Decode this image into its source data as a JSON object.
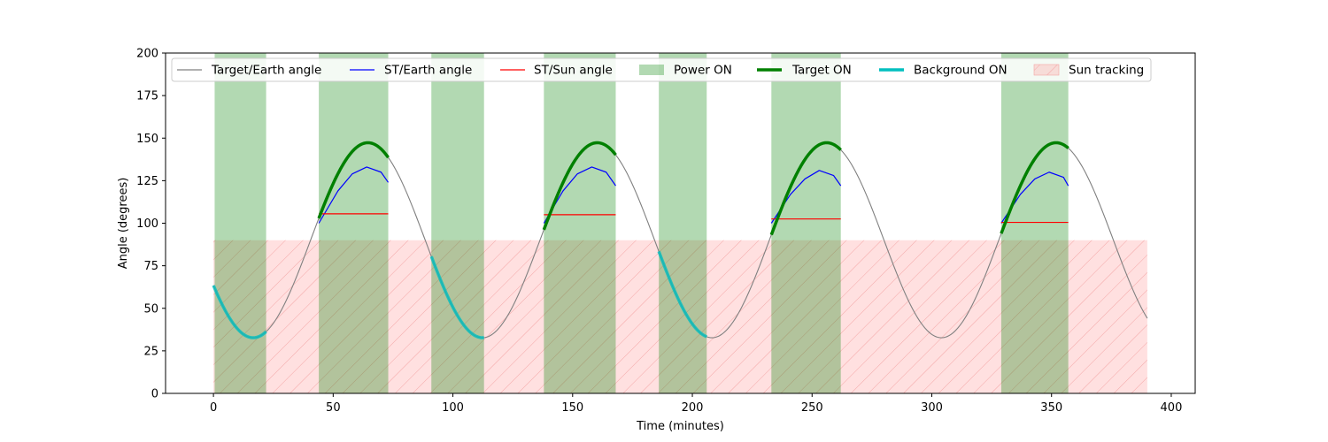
{
  "chart_data": {
    "type": "line",
    "xlabel": "Time (minutes)",
    "ylabel": "Angle (degrees)",
    "xlim": [
      -20,
      410
    ],
    "ylim": [
      0,
      200
    ],
    "xticks": [
      0,
      50,
      100,
      150,
      200,
      250,
      300,
      350,
      400
    ],
    "yticks": [
      0,
      25,
      50,
      75,
      100,
      125,
      150,
      175,
      200
    ],
    "grid": false,
    "legend_placement": "top",
    "target_earth_angle": {
      "name": "Target/Earth angle",
      "color": "#808080",
      "x_range": [
        0,
        390
      ],
      "period": 95.8,
      "mean": 90,
      "amplitude": 57.3,
      "max_at": [
        64.5,
        160.3,
        256.1,
        351.9
      ]
    },
    "st_earth_angle": {
      "name": "ST/Earth angle",
      "color": "#0000ff",
      "segments": [
        {
          "x": [
            44,
            52,
            58,
            64,
            70,
            73
          ],
          "y": [
            100,
            119,
            129,
            133,
            130,
            124
          ]
        },
        {
          "x": [
            138,
            146,
            152,
            158,
            164,
            168
          ],
          "y": [
            100,
            119,
            129,
            133,
            130,
            122
          ]
        },
        {
          "x": [
            233,
            241,
            247,
            253,
            259,
            262
          ],
          "y": [
            100,
            117,
            126,
            131,
            128,
            122
          ]
        },
        {
          "x": [
            329,
            337,
            343,
            349,
            355,
            357
          ],
          "y": [
            100,
            117,
            126,
            130,
            127,
            122
          ]
        }
      ]
    },
    "st_sun_angle": {
      "name": "ST/Sun angle",
      "color": "#ff0000",
      "segments": [
        {
          "x": [
            44,
            73
          ],
          "y": [
            105.5,
            105.5
          ]
        },
        {
          "x": [
            138,
            168
          ],
          "y": [
            105,
            105
          ]
        },
        {
          "x": [
            233,
            262
          ],
          "y": [
            102.5,
            102.5
          ]
        },
        {
          "x": [
            329,
            357
          ],
          "y": [
            100.5,
            100.5
          ]
        }
      ]
    },
    "power_on": {
      "name": "Power ON",
      "color": "#008000",
      "intervals": [
        [
          0.5,
          22
        ],
        [
          44,
          73
        ],
        [
          91,
          113
        ],
        [
          138,
          168
        ],
        [
          186,
          206
        ],
        [
          233,
          262
        ],
        [
          329,
          357
        ]
      ]
    },
    "target_on": {
      "name": "Target ON",
      "color": "#008000",
      "intervals": [
        [
          44,
          73
        ],
        [
          138,
          168
        ],
        [
          233,
          262
        ],
        [
          329,
          357
        ]
      ]
    },
    "background_on": {
      "name": "Background ON",
      "color": "#00bfbf",
      "intervals": [
        [
          0,
          22
        ],
        [
          91,
          113
        ],
        [
          186,
          206
        ]
      ]
    },
    "sun_tracking": {
      "name": "Sun tracking",
      "color": "#ff9999",
      "y_top": 90,
      "intervals": [
        [
          0,
          390
        ]
      ]
    }
  }
}
